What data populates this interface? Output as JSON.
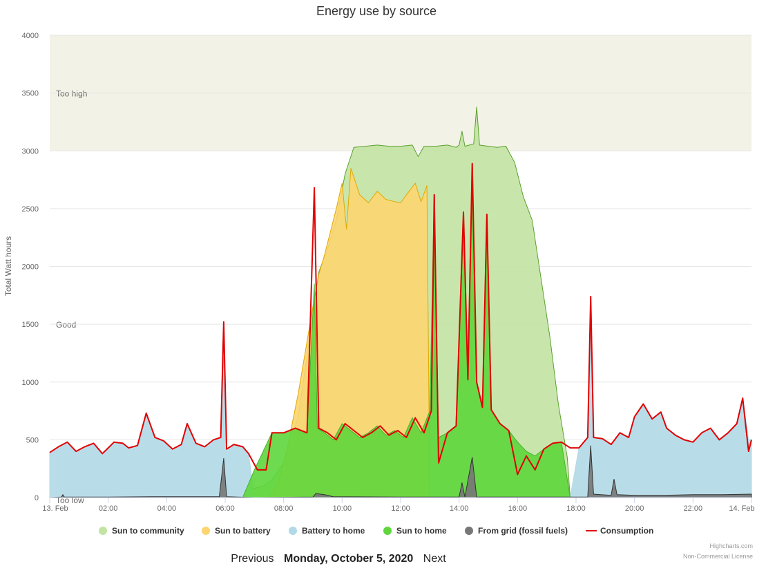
{
  "chart_data": {
    "type": "area",
    "title": "Energy use by source",
    "ylabel": "Total Watt hours",
    "ylim": [
      0,
      4000
    ],
    "yticks": [
      0,
      500,
      1000,
      1500,
      2000,
      2500,
      3000,
      3500,
      4000
    ],
    "xrange_hours": [
      0,
      24
    ],
    "xticks": [
      {
        "h": 0,
        "label": "13. Feb"
      },
      {
        "h": 2,
        "label": "02:00"
      },
      {
        "h": 4,
        "label": "04:00"
      },
      {
        "h": 6,
        "label": "06:00"
      },
      {
        "h": 8,
        "label": "08:00"
      },
      {
        "h": 10,
        "label": "10:00"
      },
      {
        "h": 12,
        "label": "12:00"
      },
      {
        "h": 14,
        "label": "14:00"
      },
      {
        "h": 16,
        "label": "16:00"
      },
      {
        "h": 18,
        "label": "18:00"
      },
      {
        "h": 20,
        "label": "20:00"
      },
      {
        "h": 22,
        "label": "22:00"
      },
      {
        "h": 24,
        "label": "14. Feb"
      }
    ],
    "plot_bands": [
      {
        "from": 3000,
        "to": 4000,
        "label": "Too high",
        "color": "#f2f2e6"
      },
      {
        "from": 1000,
        "to": 3000,
        "label": "Good",
        "color": "#ffffff"
      },
      {
        "from": 0,
        "to": 1000,
        "label": "Too low",
        "color": "#ffffff"
      }
    ],
    "legend_position": "bottom-center",
    "series": [
      {
        "name": "Sun to community",
        "kind": "area",
        "color": "#c2e3a2",
        "line": "#5aa02c",
        "points": [
          [
            6.6,
            0
          ],
          [
            6.7,
            70
          ],
          [
            7.0,
            80
          ],
          [
            7.3,
            100
          ],
          [
            7.6,
            150
          ],
          [
            8.0,
            300
          ],
          [
            8.5,
            700
          ],
          [
            8.9,
            1400
          ],
          [
            9.2,
            1950
          ],
          [
            9.5,
            2150
          ],
          [
            9.8,
            2400
          ],
          [
            10.1,
            2800
          ],
          [
            10.4,
            3030
          ],
          [
            10.8,
            3040
          ],
          [
            11.2,
            3050
          ],
          [
            11.6,
            3040
          ],
          [
            12.0,
            3040
          ],
          [
            12.4,
            3050
          ],
          [
            12.6,
            2950
          ],
          [
            12.8,
            3040
          ],
          [
            13.2,
            3040
          ],
          [
            13.6,
            3050
          ],
          [
            13.9,
            3030
          ],
          [
            14.0,
            3050
          ],
          [
            14.1,
            3170
          ],
          [
            14.2,
            3040
          ],
          [
            14.5,
            3060
          ],
          [
            14.6,
            3380
          ],
          [
            14.7,
            3050
          ],
          [
            15.0,
            3040
          ],
          [
            15.3,
            3030
          ],
          [
            15.6,
            3040
          ],
          [
            15.9,
            2900
          ],
          [
            16.2,
            2600
          ],
          [
            16.5,
            2400
          ],
          [
            16.8,
            1900
          ],
          [
            17.1,
            1400
          ],
          [
            17.4,
            800
          ],
          [
            17.7,
            350
          ],
          [
            17.8,
            0
          ]
        ]
      },
      {
        "name": "Sun to battery",
        "kind": "area",
        "color": "#fdd570",
        "line": "#e0a900",
        "points": [
          [
            7.5,
            0
          ],
          [
            7.8,
            120
          ],
          [
            8.1,
            400
          ],
          [
            8.5,
            900
          ],
          [
            8.8,
            1350
          ],
          [
            9.0,
            1650
          ],
          [
            9.2,
            1930
          ],
          [
            9.4,
            2100
          ],
          [
            9.6,
            2300
          ],
          [
            9.8,
            2500
          ],
          [
            10.0,
            2720
          ],
          [
            10.15,
            2320
          ],
          [
            10.3,
            2850
          ],
          [
            10.6,
            2620
          ],
          [
            10.9,
            2550
          ],
          [
            11.2,
            2650
          ],
          [
            11.5,
            2580
          ],
          [
            11.8,
            2560
          ],
          [
            12.0,
            2550
          ],
          [
            12.2,
            2620
          ],
          [
            12.5,
            2720
          ],
          [
            12.7,
            2560
          ],
          [
            12.9,
            2700
          ],
          [
            13.0,
            0
          ]
        ]
      },
      {
        "name": "Battery to home",
        "kind": "area",
        "color": "#b1d9e6",
        "line": "#b1d9e6",
        "points": [
          [
            0,
            390
          ],
          [
            0.3,
            440
          ],
          [
            0.6,
            480
          ],
          [
            0.9,
            400
          ],
          [
            1.2,
            440
          ],
          [
            1.5,
            470
          ],
          [
            1.8,
            380
          ],
          [
            2.0,
            430
          ],
          [
            2.2,
            480
          ],
          [
            2.5,
            470
          ],
          [
            2.7,
            430
          ],
          [
            3.0,
            450
          ],
          [
            3.3,
            730
          ],
          [
            3.6,
            520
          ],
          [
            3.9,
            490
          ],
          [
            4.2,
            420
          ],
          [
            4.5,
            460
          ],
          [
            4.7,
            640
          ],
          [
            5.0,
            470
          ],
          [
            5.3,
            440
          ],
          [
            5.6,
            500
          ],
          [
            5.85,
            520
          ],
          [
            5.95,
            1520
          ],
          [
            6.05,
            420
          ],
          [
            6.3,
            460
          ],
          [
            6.6,
            440
          ],
          [
            6.8,
            380
          ],
          [
            7.0,
            0
          ],
          [
            17.8,
            0
          ],
          [
            18.1,
            430
          ],
          [
            18.4,
            520
          ],
          [
            18.5,
            1740
          ],
          [
            18.6,
            520
          ],
          [
            18.9,
            510
          ],
          [
            19.2,
            460
          ],
          [
            19.5,
            560
          ],
          [
            19.8,
            520
          ],
          [
            20.0,
            700
          ],
          [
            20.3,
            810
          ],
          [
            20.6,
            680
          ],
          [
            20.9,
            740
          ],
          [
            21.1,
            600
          ],
          [
            21.4,
            540
          ],
          [
            21.7,
            500
          ],
          [
            22.0,
            480
          ],
          [
            22.3,
            560
          ],
          [
            22.6,
            600
          ],
          [
            22.9,
            500
          ],
          [
            23.2,
            560
          ],
          [
            23.5,
            640
          ],
          [
            23.7,
            860
          ],
          [
            23.9,
            500
          ],
          [
            24,
            500
          ]
        ]
      },
      {
        "name": "Sun to home",
        "kind": "area",
        "color": "#5ed63c",
        "line": "#4ab02e",
        "points": [
          [
            6.6,
            0
          ],
          [
            7.0,
            240
          ],
          [
            7.3,
            400
          ],
          [
            7.6,
            560
          ],
          [
            8.0,
            560
          ],
          [
            8.4,
            600
          ],
          [
            8.8,
            560
          ],
          [
            9.05,
            1850
          ],
          [
            9.15,
            600
          ],
          [
            9.4,
            560
          ],
          [
            9.7,
            500
          ],
          [
            10.0,
            640
          ],
          [
            10.3,
            580
          ],
          [
            10.6,
            520
          ],
          [
            10.9,
            560
          ],
          [
            11.2,
            620
          ],
          [
            11.5,
            540
          ],
          [
            11.8,
            580
          ],
          [
            12.1,
            520
          ],
          [
            12.4,
            690
          ],
          [
            12.7,
            560
          ],
          [
            13.0,
            750
          ],
          [
            13.15,
            2620
          ],
          [
            13.3,
            520
          ],
          [
            13.6,
            560
          ],
          [
            13.9,
            620
          ],
          [
            14.15,
            2470
          ],
          [
            14.3,
            1020
          ],
          [
            14.45,
            2890
          ],
          [
            14.6,
            1000
          ],
          [
            14.8,
            780
          ],
          [
            14.95,
            2450
          ],
          [
            15.1,
            760
          ],
          [
            15.4,
            640
          ],
          [
            15.7,
            580
          ],
          [
            16.0,
            480
          ],
          [
            16.3,
            400
          ],
          [
            16.6,
            360
          ],
          [
            16.9,
            420
          ],
          [
            17.2,
            470
          ],
          [
            17.5,
            480
          ],
          [
            17.8,
            0
          ]
        ]
      },
      {
        "name": "From grid (fossil fuels)",
        "kind": "area",
        "color": "#777777",
        "line": "#333333",
        "points": [
          [
            0,
            0
          ],
          [
            0.4,
            5
          ],
          [
            0.45,
            25
          ],
          [
            0.5,
            5
          ],
          [
            2.0,
            5
          ],
          [
            3.5,
            8
          ],
          [
            5.8,
            8
          ],
          [
            5.95,
            340
          ],
          [
            6.05,
            8
          ],
          [
            7.0,
            0
          ],
          [
            9.0,
            5
          ],
          [
            9.1,
            35
          ],
          [
            9.4,
            25
          ],
          [
            9.7,
            8
          ],
          [
            12.0,
            5
          ],
          [
            14.0,
            5
          ],
          [
            14.1,
            130
          ],
          [
            14.2,
            5
          ],
          [
            14.45,
            350
          ],
          [
            14.6,
            5
          ],
          [
            17.8,
            5
          ],
          [
            18.4,
            5
          ],
          [
            18.5,
            450
          ],
          [
            18.6,
            30
          ],
          [
            19.2,
            20
          ],
          [
            19.3,
            160
          ],
          [
            19.4,
            25
          ],
          [
            20.0,
            20
          ],
          [
            21.0,
            20
          ],
          [
            22.0,
            25
          ],
          [
            23.0,
            25
          ],
          [
            24,
            30
          ]
        ]
      },
      {
        "name": "Consumption",
        "kind": "line",
        "color": "#e00000",
        "points": [
          [
            0,
            390
          ],
          [
            0.3,
            440
          ],
          [
            0.6,
            480
          ],
          [
            0.9,
            400
          ],
          [
            1.2,
            440
          ],
          [
            1.5,
            470
          ],
          [
            1.8,
            380
          ],
          [
            2.0,
            430
          ],
          [
            2.2,
            480
          ],
          [
            2.5,
            470
          ],
          [
            2.7,
            430
          ],
          [
            3.0,
            450
          ],
          [
            3.3,
            730
          ],
          [
            3.6,
            520
          ],
          [
            3.9,
            490
          ],
          [
            4.2,
            420
          ],
          [
            4.5,
            460
          ],
          [
            4.7,
            640
          ],
          [
            5.0,
            470
          ],
          [
            5.3,
            440
          ],
          [
            5.6,
            500
          ],
          [
            5.85,
            520
          ],
          [
            5.95,
            1520
          ],
          [
            6.05,
            420
          ],
          [
            6.3,
            460
          ],
          [
            6.6,
            440
          ],
          [
            6.8,
            380
          ],
          [
            7.1,
            240
          ],
          [
            7.4,
            240
          ],
          [
            7.6,
            560
          ],
          [
            8.0,
            560
          ],
          [
            8.4,
            600
          ],
          [
            8.8,
            560
          ],
          [
            9.05,
            2680
          ],
          [
            9.2,
            600
          ],
          [
            9.5,
            560
          ],
          [
            9.8,
            500
          ],
          [
            10.1,
            640
          ],
          [
            10.4,
            580
          ],
          [
            10.7,
            520
          ],
          [
            11.0,
            560
          ],
          [
            11.3,
            620
          ],
          [
            11.6,
            540
          ],
          [
            11.9,
            580
          ],
          [
            12.2,
            520
          ],
          [
            12.5,
            690
          ],
          [
            12.8,
            560
          ],
          [
            13.05,
            750
          ],
          [
            13.15,
            2620
          ],
          [
            13.3,
            300
          ],
          [
            13.6,
            560
          ],
          [
            13.9,
            620
          ],
          [
            14.15,
            2470
          ],
          [
            14.3,
            1020
          ],
          [
            14.45,
            2890
          ],
          [
            14.6,
            1000
          ],
          [
            14.8,
            780
          ],
          [
            14.95,
            2450
          ],
          [
            15.1,
            760
          ],
          [
            15.4,
            640
          ],
          [
            15.7,
            580
          ],
          [
            16.0,
            200
          ],
          [
            16.3,
            360
          ],
          [
            16.6,
            240
          ],
          [
            16.9,
            420
          ],
          [
            17.2,
            470
          ],
          [
            17.5,
            480
          ],
          [
            17.8,
            430
          ],
          [
            18.1,
            430
          ],
          [
            18.4,
            520
          ],
          [
            18.5,
            1740
          ],
          [
            18.6,
            520
          ],
          [
            18.9,
            510
          ],
          [
            19.2,
            460
          ],
          [
            19.5,
            560
          ],
          [
            19.8,
            520
          ],
          [
            20.0,
            700
          ],
          [
            20.3,
            810
          ],
          [
            20.6,
            680
          ],
          [
            20.9,
            740
          ],
          [
            21.1,
            600
          ],
          [
            21.4,
            540
          ],
          [
            21.7,
            500
          ],
          [
            22.0,
            480
          ],
          [
            22.3,
            560
          ],
          [
            22.6,
            600
          ],
          [
            22.9,
            500
          ],
          [
            23.2,
            560
          ],
          [
            23.5,
            640
          ],
          [
            23.7,
            860
          ],
          [
            23.9,
            400
          ],
          [
            24,
            500
          ]
        ]
      }
    ]
  },
  "credits": {
    "line1": "Highcharts.com",
    "line2": "Non-Commercial License"
  },
  "nav": {
    "previous": "Previous",
    "date": "Monday, October 5, 2020",
    "next": "Next"
  }
}
